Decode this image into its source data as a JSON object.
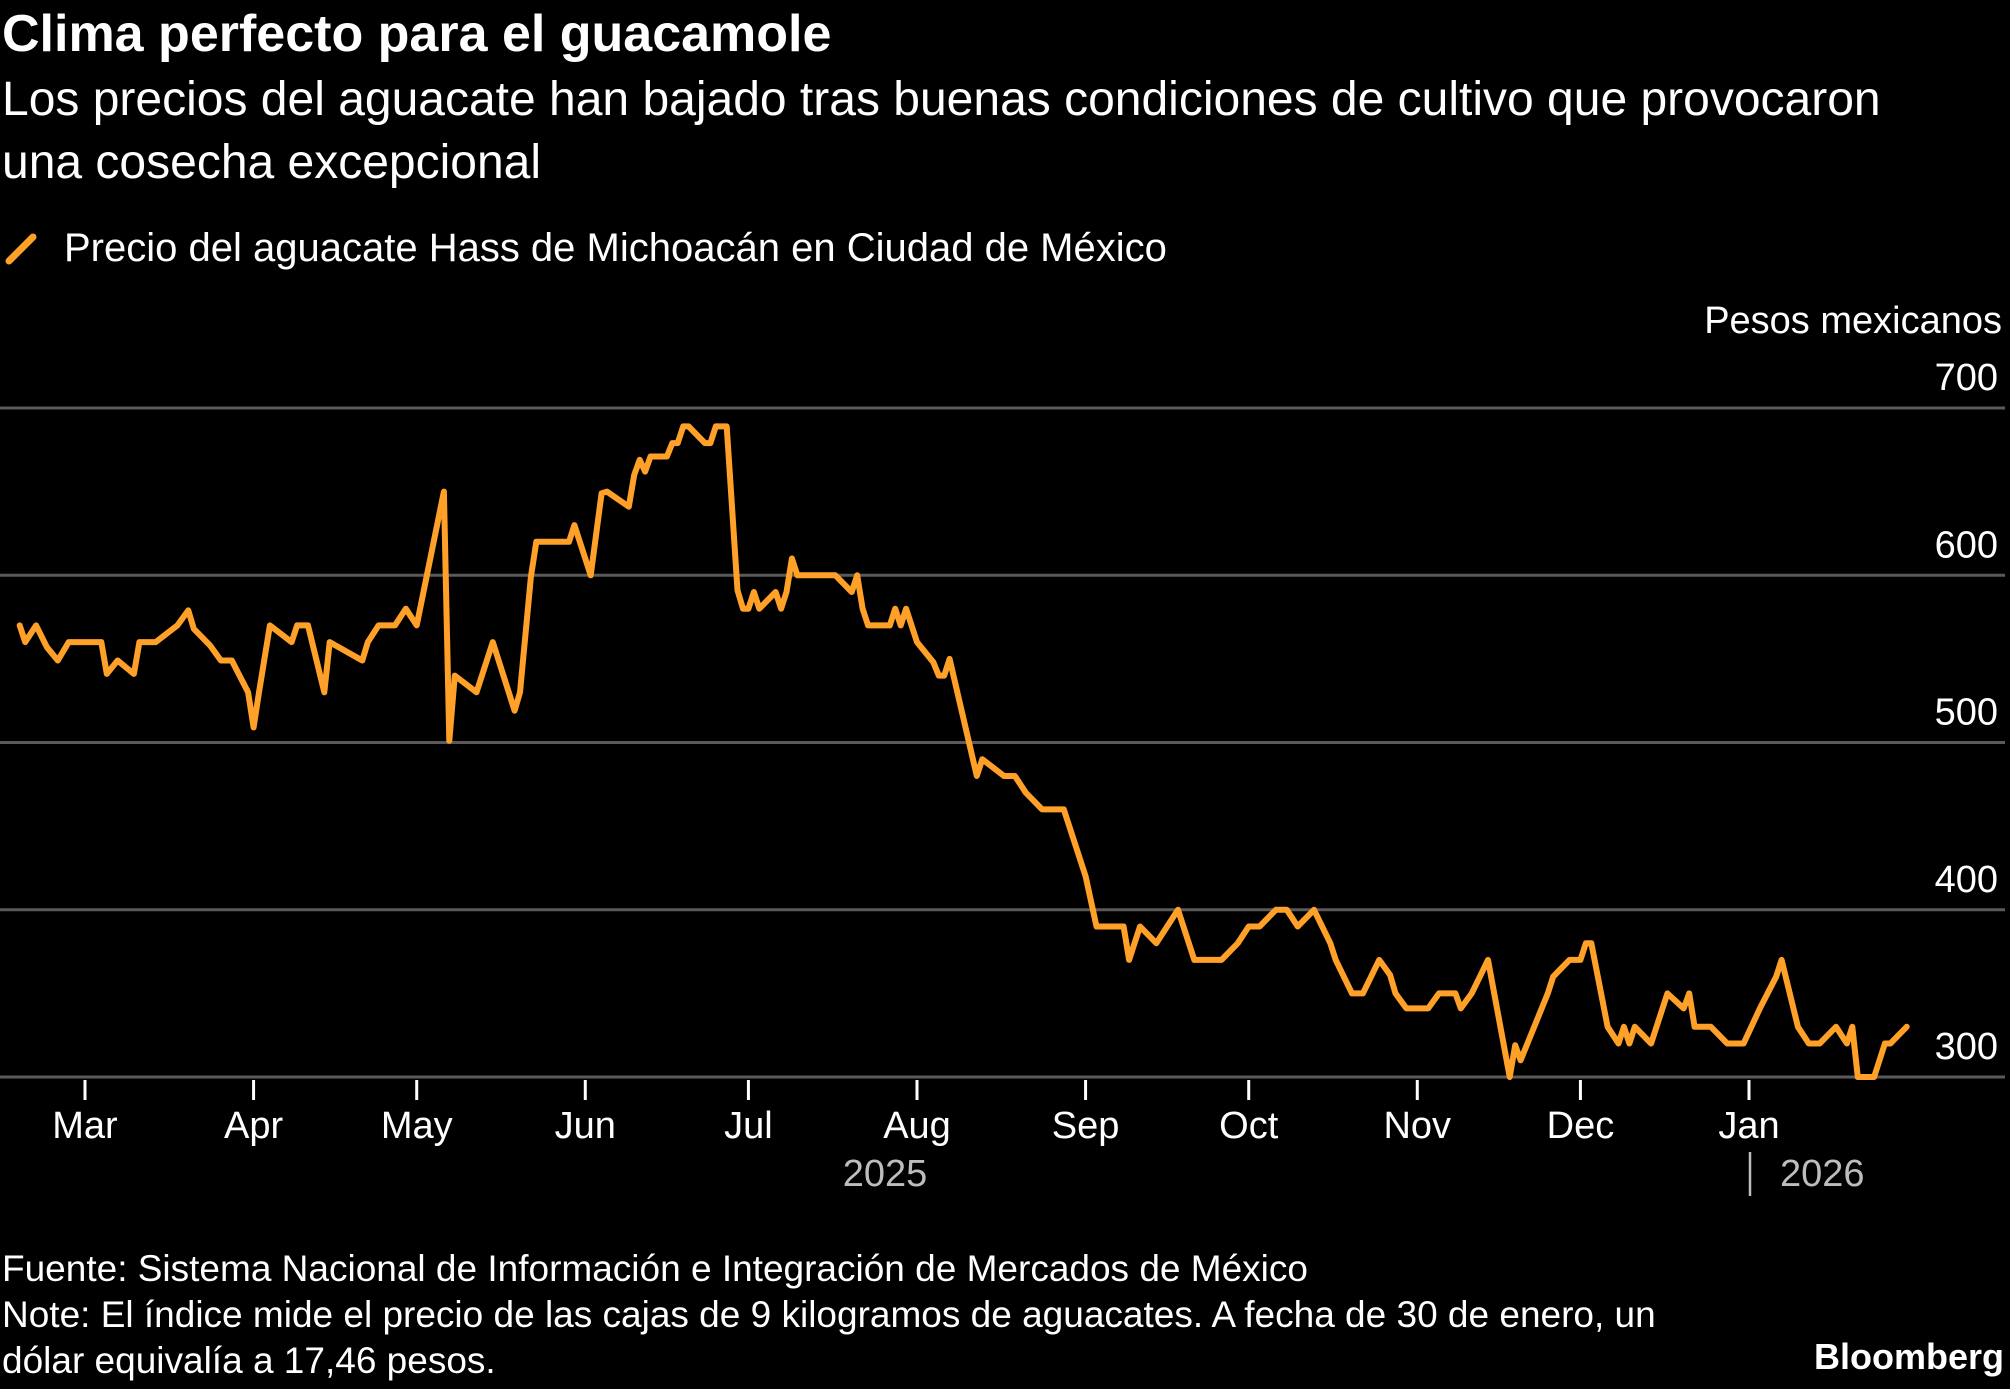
{
  "header": {
    "title": "Clima perfecto para el guacamole",
    "subtitle": "Los precios del aguacate han bajado tras buenas condiciones de cultivo que provocaron una cosecha excepcional"
  },
  "footer": {
    "source": "Fuente: Sistema Nacional de Información e Integración de Mercados de México",
    "note": "Note: El índice mide el precio de las cajas de 9 kilogramos de aguacates. A fecha de 30 de enero, un dólar equivalía a 17,46 pesos.",
    "brand": "Bloomberg"
  },
  "colors": {
    "background": "#000000",
    "line": "#FFA028",
    "grid": "#5a5a5a",
    "text": "#ffffff",
    "year_text": "#bdbdbd"
  },
  "chart_data": {
    "type": "line",
    "title": "Clima perfecto para el guacamole",
    "ylabel": "Pesos mexicanos",
    "ylim": [
      300,
      700
    ],
    "yticks": [
      300,
      400,
      500,
      600,
      700
    ],
    "y_axis_side": "right",
    "grid": true,
    "legend": "top-left",
    "xticks": [
      {
        "date": "2025-03-01",
        "label": "Mar"
      },
      {
        "date": "2025-04-01",
        "label": "Apr"
      },
      {
        "date": "2025-05-01",
        "label": "May"
      },
      {
        "date": "2025-06-01",
        "label": "Jun"
      },
      {
        "date": "2025-07-01",
        "label": "Jul"
      },
      {
        "date": "2025-08-01",
        "label": "Aug"
      },
      {
        "date": "2025-09-01",
        "label": "Sep"
      },
      {
        "date": "2025-10-01",
        "label": "Oct"
      },
      {
        "date": "2025-11-01",
        "label": "Nov"
      },
      {
        "date": "2025-12-01",
        "label": "Dec"
      },
      {
        "date": "2026-01-01",
        "label": "Jan"
      }
    ],
    "year_labels": [
      {
        "label": "2025"
      },
      {
        "label": "2026"
      }
    ],
    "series": [
      {
        "name": "Precio del aguacate Hass de Michoacán en Ciudad de México",
        "points": [
          [
            "2025-02-17",
            570
          ],
          [
            "2025-02-18",
            560
          ],
          [
            "2025-02-20",
            570
          ],
          [
            "2025-02-22",
            557
          ],
          [
            "2025-02-24",
            549
          ],
          [
            "2025-02-26",
            560
          ],
          [
            "2025-03-04",
            560
          ],
          [
            "2025-03-05",
            541
          ],
          [
            "2025-03-07",
            549
          ],
          [
            "2025-03-10",
            541
          ],
          [
            "2025-03-11",
            560
          ],
          [
            "2025-03-14",
            560
          ],
          [
            "2025-03-18",
            570
          ],
          [
            "2025-03-20",
            579
          ],
          [
            "2025-03-21",
            568
          ],
          [
            "2025-03-24",
            558
          ],
          [
            "2025-03-26",
            549
          ],
          [
            "2025-03-28",
            549
          ],
          [
            "2025-03-31",
            530
          ],
          [
            "2025-04-01",
            509
          ],
          [
            "2025-04-02",
            530
          ],
          [
            "2025-04-04",
            570
          ],
          [
            "2025-04-08",
            560
          ],
          [
            "2025-04-09",
            570
          ],
          [
            "2025-04-11",
            570
          ],
          [
            "2025-04-14",
            530
          ],
          [
            "2025-04-15",
            560
          ],
          [
            "2025-04-21",
            549
          ],
          [
            "2025-04-22",
            560
          ],
          [
            "2025-04-24",
            570
          ],
          [
            "2025-04-27",
            570
          ],
          [
            "2025-04-29",
            580
          ],
          [
            "2025-05-01",
            570
          ],
          [
            "2025-05-06",
            650
          ],
          [
            "2025-05-07",
            501
          ],
          [
            "2025-05-08",
            540
          ],
          [
            "2025-05-12",
            530
          ],
          [
            "2025-05-15",
            560
          ],
          [
            "2025-05-19",
            519
          ],
          [
            "2025-05-20",
            530
          ],
          [
            "2025-05-22",
            599
          ],
          [
            "2025-05-23",
            620
          ],
          [
            "2025-05-29",
            620
          ],
          [
            "2025-05-30",
            630
          ],
          [
            "2025-06-02",
            600
          ],
          [
            "2025-06-04",
            649
          ],
          [
            "2025-06-05",
            650
          ],
          [
            "2025-06-09",
            641
          ],
          [
            "2025-06-10",
            660
          ],
          [
            "2025-06-11",
            669
          ],
          [
            "2025-06-12",
            662
          ],
          [
            "2025-06-13",
            671
          ],
          [
            "2025-06-16",
            671
          ],
          [
            "2025-06-17",
            679
          ],
          [
            "2025-06-18",
            679
          ],
          [
            "2025-06-19",
            689
          ],
          [
            "2025-06-20",
            689
          ],
          [
            "2025-06-23",
            679
          ],
          [
            "2025-06-24",
            679
          ],
          [
            "2025-06-25",
            689
          ],
          [
            "2025-06-27",
            689
          ],
          [
            "2025-06-29",
            591
          ],
          [
            "2025-06-30",
            580
          ],
          [
            "2025-07-01",
            580
          ],
          [
            "2025-07-02",
            590
          ],
          [
            "2025-07-03",
            580
          ],
          [
            "2025-07-06",
            590
          ],
          [
            "2025-07-07",
            580
          ],
          [
            "2025-07-08",
            590
          ],
          [
            "2025-07-09",
            610
          ],
          [
            "2025-07-10",
            600
          ],
          [
            "2025-07-17",
            600
          ],
          [
            "2025-07-20",
            590
          ],
          [
            "2025-07-21",
            600
          ],
          [
            "2025-07-22",
            580
          ],
          [
            "2025-07-23",
            570
          ],
          [
            "2025-07-27",
            570
          ],
          [
            "2025-07-28",
            580
          ],
          [
            "2025-07-29",
            570
          ],
          [
            "2025-07-30",
            580
          ],
          [
            "2025-08-01",
            560
          ],
          [
            "2025-08-04",
            548
          ],
          [
            "2025-08-05",
            540
          ],
          [
            "2025-08-06",
            540
          ],
          [
            "2025-08-07",
            550
          ],
          [
            "2025-08-12",
            480
          ],
          [
            "2025-08-13",
            490
          ],
          [
            "2025-08-17",
            480
          ],
          [
            "2025-08-19",
            480
          ],
          [
            "2025-08-21",
            470
          ],
          [
            "2025-08-24",
            460
          ],
          [
            "2025-08-28",
            460
          ],
          [
            "2025-09-01",
            420
          ],
          [
            "2025-09-03",
            390
          ],
          [
            "2025-09-08",
            390
          ],
          [
            "2025-09-09",
            370
          ],
          [
            "2025-09-11",
            390
          ],
          [
            "2025-09-14",
            380
          ],
          [
            "2025-09-18",
            400
          ],
          [
            "2025-09-21",
            370
          ],
          [
            "2025-09-26",
            370
          ],
          [
            "2025-09-29",
            380
          ],
          [
            "2025-10-01",
            390
          ],
          [
            "2025-10-03",
            390
          ],
          [
            "2025-10-06",
            400
          ],
          [
            "2025-10-08",
            400
          ],
          [
            "2025-10-10",
            390
          ],
          [
            "2025-10-13",
            400
          ],
          [
            "2025-10-16",
            380
          ],
          [
            "2025-10-17",
            370
          ],
          [
            "2025-10-20",
            350
          ],
          [
            "2025-10-22",
            350
          ],
          [
            "2025-10-25",
            370
          ],
          [
            "2025-10-27",
            361
          ],
          [
            "2025-10-28",
            350
          ],
          [
            "2025-10-30",
            341
          ],
          [
            "2025-11-03",
            341
          ],
          [
            "2025-11-05",
            350
          ],
          [
            "2025-11-08",
            350
          ],
          [
            "2025-11-09",
            341
          ],
          [
            "2025-11-11",
            350
          ],
          [
            "2025-11-14",
            370
          ],
          [
            "2025-11-18",
            300
          ],
          [
            "2025-11-19",
            319
          ],
          [
            "2025-11-20",
            310
          ],
          [
            "2025-11-25",
            350
          ],
          [
            "2025-11-26",
            360
          ],
          [
            "2025-11-29",
            370
          ],
          [
            "2025-12-01",
            370
          ],
          [
            "2025-12-02",
            380
          ],
          [
            "2025-12-03",
            380
          ],
          [
            "2025-12-06",
            330
          ],
          [
            "2025-12-08",
            320
          ],
          [
            "2025-12-09",
            330
          ],
          [
            "2025-12-10",
            320
          ],
          [
            "2025-12-11",
            330
          ],
          [
            "2025-12-14",
            320
          ],
          [
            "2025-12-17",
            350
          ],
          [
            "2025-12-20",
            341
          ],
          [
            "2025-12-21",
            350
          ],
          [
            "2025-12-22",
            330
          ],
          [
            "2025-12-25",
            330
          ],
          [
            "2025-12-28",
            320
          ],
          [
            "2025-12-31",
            320
          ],
          [
            "2026-01-03",
            341
          ],
          [
            "2026-01-06",
            360
          ],
          [
            "2026-01-07",
            370
          ],
          [
            "2026-01-10",
            330
          ],
          [
            "2026-01-12",
            320
          ],
          [
            "2026-01-14",
            320
          ],
          [
            "2026-01-17",
            330
          ],
          [
            "2026-01-19",
            320
          ],
          [
            "2026-01-20",
            330
          ],
          [
            "2026-01-21",
            300
          ],
          [
            "2026-01-24",
            300
          ],
          [
            "2026-01-26",
            320
          ],
          [
            "2026-01-27",
            320
          ],
          [
            "2026-01-30",
            330
          ]
        ]
      }
    ]
  }
}
